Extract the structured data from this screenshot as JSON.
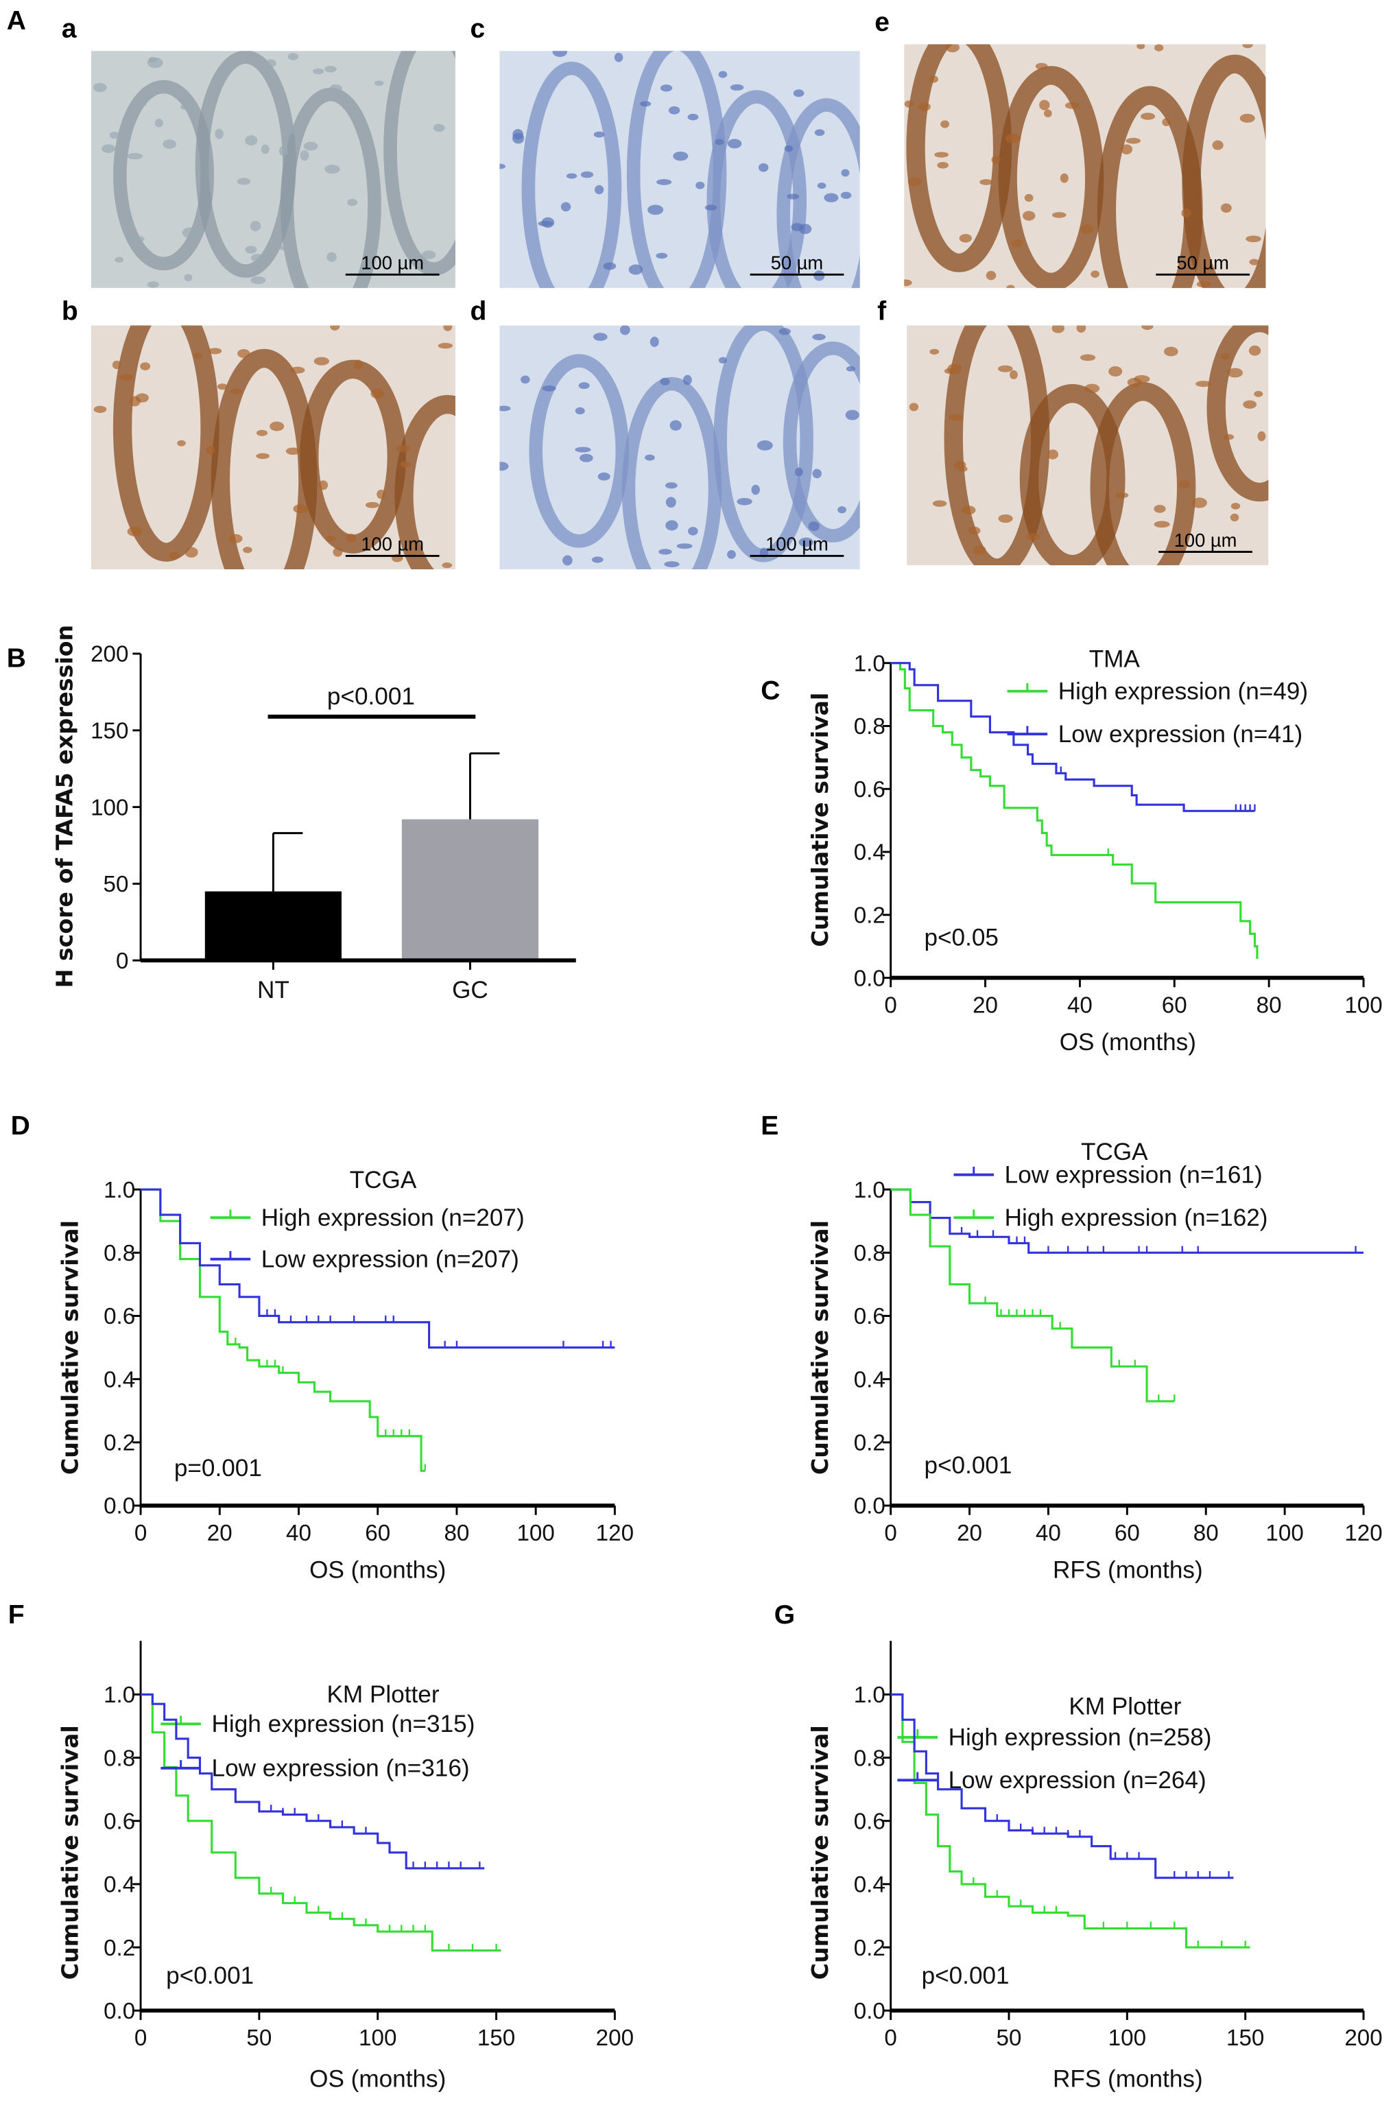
{
  "figure": {
    "panel_A": {
      "label": "A",
      "images": [
        {
          "id": "a",
          "label": "a",
          "scale_bar": "100 µm",
          "stain": "negative-control"
        },
        {
          "id": "c",
          "label": "c",
          "scale_bar": "50 µm",
          "stain": "blue"
        },
        {
          "id": "e",
          "label": "e",
          "scale_bar": "50 µm",
          "stain": "brown"
        },
        {
          "id": "b",
          "label": "b",
          "scale_bar": "100 µm",
          "stain": "brown"
        },
        {
          "id": "d",
          "label": "d",
          "scale_bar": "100 µm",
          "stain": "blue"
        },
        {
          "id": "f",
          "label": "f",
          "scale_bar": "100 µm",
          "stain": "brown"
        }
      ]
    }
  },
  "colors": {
    "high": "#33dd33",
    "low": "#3333dd",
    "nt_bar": "#000000",
    "gc_bar": "#a0a0a8"
  },
  "chart_data": [
    {
      "panel": "B",
      "type": "bar",
      "categories": [
        "NT",
        "GC"
      ],
      "values": [
        45,
        92
      ],
      "error_upper": [
        83,
        135
      ],
      "ylabel": "H score of TAFA5 expression",
      "ylim": [
        0,
        200
      ],
      "yticks": [
        "0",
        "50",
        "100",
        "150",
        "200"
      ],
      "annotation": "p<0.001"
    },
    {
      "panel": "C",
      "type": "line",
      "title": "TMA",
      "xlabel": "OS (months)",
      "ylabel": "Cumulative survival",
      "xlim": [
        0,
        100
      ],
      "xticks": [
        "0",
        "20",
        "40",
        "60",
        "80",
        "100"
      ],
      "ylim": [
        0,
        1
      ],
      "yticks": [
        "0.0",
        "0.2",
        "0.4",
        "0.6",
        "0.8",
        "1.0"
      ],
      "pvalue": "p<0.05",
      "series": [
        {
          "name": "High expression (n=49)",
          "key": "high",
          "points": [
            [
              0,
              1
            ],
            [
              2,
              0.98
            ],
            [
              3,
              0.92
            ],
            [
              4,
              0.85
            ],
            [
              9,
              0.8
            ],
            [
              11,
              0.78
            ],
            [
              13,
              0.74
            ],
            [
              15,
              0.7
            ],
            [
              17,
              0.66
            ],
            [
              19,
              0.64
            ],
            [
              21,
              0.61
            ],
            [
              24,
              0.54
            ],
            [
              31,
              0.5
            ],
            [
              32,
              0.46
            ],
            [
              33,
              0.42
            ],
            [
              34,
              0.39
            ],
            [
              47,
              0.36
            ],
            [
              51,
              0.3
            ],
            [
              56,
              0.24
            ],
            [
              74,
              0.18
            ],
            [
              76,
              0.14
            ],
            [
              77,
              0.1
            ],
            [
              77.5,
              0.06
            ]
          ],
          "censored": [
            46
          ]
        },
        {
          "name": "Low expression (n=41)",
          "key": "low",
          "points": [
            [
              0,
              1
            ],
            [
              4,
              0.98
            ],
            [
              5,
              0.93
            ],
            [
              10,
              0.88
            ],
            [
              17,
              0.83
            ],
            [
              21,
              0.78
            ],
            [
              26,
              0.74
            ],
            [
              29,
              0.71
            ],
            [
              30,
              0.68
            ],
            [
              35,
              0.65
            ],
            [
              37,
              0.63
            ],
            [
              43,
              0.61
            ],
            [
              51,
              0.58
            ],
            [
              52,
              0.55
            ],
            [
              62,
              0.53
            ],
            [
              77,
              0.53
            ]
          ],
          "censored": [
            36,
            73,
            74,
            75,
            76,
            77
          ]
        }
      ]
    },
    {
      "panel": "D",
      "type": "line",
      "title": "TCGA",
      "xlabel": "OS (months)",
      "ylabel": "Cumulative survival",
      "xlim": [
        0,
        120
      ],
      "xticks": [
        "0",
        "20",
        "40",
        "60",
        "80",
        "100",
        "120"
      ],
      "ylim": [
        0,
        1
      ],
      "yticks": [
        "0.0",
        "0.2",
        "0.4",
        "0.6",
        "0.8",
        "1.0"
      ],
      "pvalue": "p=0.001",
      "series": [
        {
          "name": "High expression (n=207)",
          "key": "high",
          "points": [
            [
              0,
              1
            ],
            [
              5,
              0.9
            ],
            [
              10,
              0.78
            ],
            [
              15,
              0.66
            ],
            [
              20,
              0.55
            ],
            [
              22,
              0.51
            ],
            [
              25,
              0.5
            ],
            [
              27,
              0.46
            ],
            [
              30,
              0.44
            ],
            [
              35,
              0.42
            ],
            [
              40,
              0.39
            ],
            [
              44,
              0.36
            ],
            [
              48,
              0.33
            ],
            [
              58,
              0.28
            ],
            [
              60,
              0.22
            ],
            [
              71,
              0.11
            ],
            [
              72,
              0.11
            ]
          ],
          "censored": [
            22,
            24,
            30,
            32,
            34,
            36,
            62,
            64,
            66,
            68,
            72
          ]
        },
        {
          "name": "Low expression (n=207)",
          "key": "low",
          "points": [
            [
              0,
              1
            ],
            [
              5,
              0.92
            ],
            [
              10,
              0.83
            ],
            [
              15,
              0.76
            ],
            [
              20,
              0.7
            ],
            [
              25,
              0.66
            ],
            [
              30,
              0.6
            ],
            [
              35,
              0.58
            ],
            [
              73,
              0.5
            ],
            [
              120,
              0.5
            ]
          ],
          "censored": [
            30,
            32,
            34,
            38,
            42,
            45,
            48,
            54,
            62,
            64,
            77,
            80,
            107,
            117,
            119
          ]
        }
      ]
    },
    {
      "panel": "E",
      "type": "line",
      "title": "TCGA",
      "xlabel": "RFS (months)",
      "ylabel": "Cumulative survival",
      "xlim": [
        0,
        120
      ],
      "xticks": [
        "0",
        "20",
        "40",
        "60",
        "80",
        "100",
        "120"
      ],
      "ylim": [
        0,
        1
      ],
      "yticks": [
        "0.0",
        "0.2",
        "0.4",
        "0.6",
        "0.8",
        "1.0"
      ],
      "pvalue": "p<0.001",
      "series": [
        {
          "name": "Low expression (n=161)",
          "key": "low",
          "points": [
            [
              0,
              1
            ],
            [
              5,
              0.96
            ],
            [
              10,
              0.91
            ],
            [
              15,
              0.86
            ],
            [
              20,
              0.85
            ],
            [
              30,
              0.83
            ],
            [
              35,
              0.8
            ],
            [
              120,
              0.8
            ]
          ],
          "censored": [
            15,
            18,
            22,
            26,
            30,
            32,
            34,
            40,
            45,
            50,
            54,
            63,
            65,
            74,
            78,
            118
          ]
        },
        {
          "name": "High expression (n=162)",
          "key": "high",
          "points": [
            [
              0,
              1
            ],
            [
              5,
              0.92
            ],
            [
              10,
              0.82
            ],
            [
              15,
              0.7
            ],
            [
              20,
              0.64
            ],
            [
              27,
              0.6
            ],
            [
              41,
              0.56
            ],
            [
              46,
              0.5
            ],
            [
              56,
              0.44
            ],
            [
              65,
              0.33
            ],
            [
              72,
              0.33
            ]
          ],
          "censored": [
            20,
            24,
            28,
            30,
            32,
            34,
            36,
            38,
            43,
            58,
            62,
            68,
            72
          ]
        }
      ]
    },
    {
      "panel": "F",
      "type": "line",
      "title": "KM Plotter",
      "xlabel": "OS (months)",
      "ylabel": "Cumulative survival",
      "xlim": [
        0,
        200
      ],
      "xticks": [
        "0",
        "50",
        "100",
        "150",
        "200"
      ],
      "ylim": [
        0,
        1
      ],
      "yticks": [
        "0.0",
        "0.2",
        "0.4",
        "0.6",
        "0.8",
        "1.0"
      ],
      "pvalue": "p<0.001",
      "series": [
        {
          "name": "High expression (n=315)",
          "key": "high",
          "points": [
            [
              0,
              1
            ],
            [
              5,
              0.88
            ],
            [
              10,
              0.77
            ],
            [
              15,
              0.68
            ],
            [
              20,
              0.6
            ],
            [
              30,
              0.5
            ],
            [
              40,
              0.42
            ],
            [
              50,
              0.37
            ],
            [
              60,
              0.34
            ],
            [
              70,
              0.31
            ],
            [
              80,
              0.29
            ],
            [
              90,
              0.27
            ],
            [
              100,
              0.25
            ],
            [
              123,
              0.19
            ],
            [
              152,
              0.19
            ]
          ],
          "censored": [
            55,
            65,
            75,
            85,
            95,
            105,
            110,
            115,
            120,
            130,
            140,
            150
          ]
        },
        {
          "name": "Low expression (n=316)",
          "key": "low",
          "points": [
            [
              0,
              1
            ],
            [
              5,
              0.97
            ],
            [
              10,
              0.92
            ],
            [
              15,
              0.86
            ],
            [
              20,
              0.8
            ],
            [
              25,
              0.75
            ],
            [
              30,
              0.7
            ],
            [
              40,
              0.66
            ],
            [
              50,
              0.63
            ],
            [
              60,
              0.62
            ],
            [
              70,
              0.6
            ],
            [
              80,
              0.58
            ],
            [
              90,
              0.56
            ],
            [
              100,
              0.53
            ],
            [
              105,
              0.5
            ],
            [
              112,
              0.45
            ],
            [
              145,
              0.45
            ]
          ],
          "censored": [
            50,
            55,
            60,
            65,
            70,
            75,
            80,
            85,
            90,
            95,
            115,
            120,
            125,
            130,
            135,
            143
          ]
        }
      ]
    },
    {
      "panel": "G",
      "type": "line",
      "title": "KM Plotter",
      "xlabel": "RFS (months)",
      "ylabel": "Cumulative survival",
      "xlim": [
        0,
        200
      ],
      "xticks": [
        "0",
        "50",
        "100",
        "150",
        "200"
      ],
      "ylim": [
        0,
        1
      ],
      "yticks": [
        "0.0",
        "0.2",
        "0.4",
        "0.6",
        "0.8",
        "1.0"
      ],
      "pvalue": "p<0.001",
      "series": [
        {
          "name": "High expression (n=258)",
          "key": "high",
          "points": [
            [
              0,
              1
            ],
            [
              5,
              0.85
            ],
            [
              10,
              0.72
            ],
            [
              15,
              0.62
            ],
            [
              20,
              0.52
            ],
            [
              25,
              0.44
            ],
            [
              30,
              0.4
            ],
            [
              40,
              0.36
            ],
            [
              50,
              0.33
            ],
            [
              60,
              0.31
            ],
            [
              75,
              0.3
            ],
            [
              82,
              0.26
            ],
            [
              125,
              0.2
            ],
            [
              152,
              0.2
            ]
          ],
          "censored": [
            35,
            45,
            55,
            65,
            70,
            90,
            100,
            110,
            120,
            130,
            140,
            150
          ]
        },
        {
          "name": "Low expression (n=264)",
          "key": "low",
          "points": [
            [
              0,
              1
            ],
            [
              5,
              0.92
            ],
            [
              10,
              0.82
            ],
            [
              15,
              0.75
            ],
            [
              20,
              0.7
            ],
            [
              30,
              0.64
            ],
            [
              40,
              0.6
            ],
            [
              50,
              0.57
            ],
            [
              60,
              0.56
            ],
            [
              75,
              0.55
            ],
            [
              85,
              0.52
            ],
            [
              93,
              0.48
            ],
            [
              112,
              0.42
            ],
            [
              145,
              0.42
            ]
          ],
          "censored": [
            45,
            55,
            60,
            65,
            70,
            75,
            80,
            95,
            100,
            105,
            120,
            125,
            130,
            135,
            143
          ]
        }
      ]
    }
  ]
}
